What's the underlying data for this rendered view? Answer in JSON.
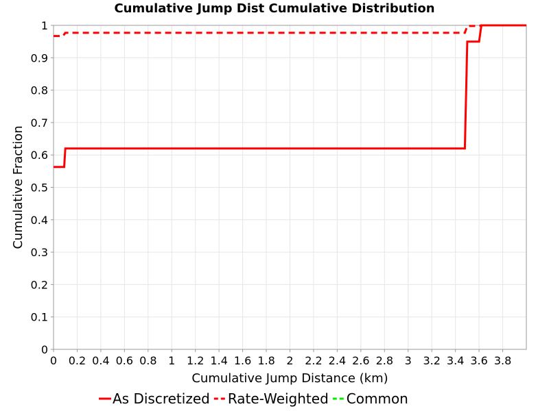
{
  "chart_data": {
    "type": "line",
    "title": "Cumulative Jump Dist Cumulative Distribution",
    "xlabel": "Cumulative Jump Distance (km)",
    "ylabel": "Cumulative Fraction",
    "xlim": [
      0,
      4.0
    ],
    "ylim": [
      0,
      1
    ],
    "x_ticks": [
      "0",
      "0.2",
      "0.4",
      "0.6",
      "0.8",
      "1",
      "1.2",
      "1.4",
      "1.6",
      "1.8",
      "2",
      "2.2",
      "2.4",
      "2.6",
      "2.8",
      "3",
      "3.2",
      "3.4",
      "3.6",
      "3.8"
    ],
    "y_ticks": [
      "0",
      "0.1",
      "0.2",
      "0.3",
      "0.4",
      "0.5",
      "0.6",
      "0.7",
      "0.8",
      "0.9",
      "1"
    ],
    "grid": true,
    "legend_position": "bottom",
    "series": [
      {
        "name": "As Discretized",
        "color": "#ff0000",
        "dash": "solid",
        "x": [
          0,
          0.09,
          0.1,
          3.48,
          3.5,
          3.6,
          3.62,
          4.0
        ],
        "y": [
          0.563,
          0.563,
          0.62,
          0.62,
          0.95,
          0.95,
          1.0,
          1.0
        ]
      },
      {
        "name": "Rate-Weighted",
        "color": "#ff0000",
        "dash": "dashed",
        "x": [
          0,
          0.08,
          0.1,
          3.48,
          3.5,
          3.6,
          3.62,
          4.0
        ],
        "y": [
          0.967,
          0.967,
          0.977,
          0.977,
          0.998,
          0.998,
          1.0,
          1.0
        ]
      },
      {
        "name": "Common",
        "color": "#00ee00",
        "dash": "dashed",
        "x": [],
        "y": []
      }
    ]
  }
}
